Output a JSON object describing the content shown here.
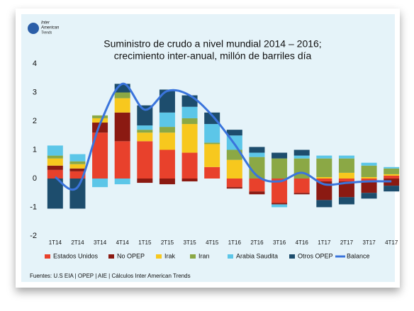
{
  "logo": {
    "line1": "Inter",
    "line2": "American",
    "line3": "Trends"
  },
  "chart_data": {
    "type": "bar",
    "stacked": true,
    "title": "Suministro de crudo a nivel mundial 2014 – 2016;",
    "subtitle": "crecimiento inter-anual, millón de barriles día",
    "categories": [
      "1T14",
      "2T14",
      "3T14",
      "4T14",
      "1T15",
      "2T15",
      "3T15",
      "4T15",
      "1T16",
      "2T16",
      "3T16",
      "4T16",
      "1T17",
      "2T17",
      "3T17",
      "4T17"
    ],
    "series": [
      {
        "name": "Estados Unidos",
        "color": "#e8412c",
        "values": [
          0.3,
          0.25,
          1.6,
          1.3,
          1.3,
          1.0,
          0.9,
          0.4,
          -0.3,
          -0.45,
          -0.85,
          -0.5,
          -0.1,
          -0.1,
          -0.1,
          0.1
        ]
      },
      {
        "name": "No OPEP",
        "color": "#8b1a12",
        "values": [
          0.15,
          0.1,
          0.35,
          1.0,
          -0.15,
          -0.2,
          -0.1,
          0,
          -0.05,
          -0.1,
          -0.05,
          -0.05,
          -0.65,
          -0.55,
          -0.4,
          -0.25
        ]
      },
      {
        "name": "Irak",
        "color": "#f7c81e",
        "values": [
          0.25,
          0.15,
          0.15,
          0.5,
          0.3,
          0.6,
          1.0,
          0.8,
          0.65,
          0,
          0,
          0,
          0.05,
          0.2,
          0.05,
          0.05
        ]
      },
      {
        "name": "Iran",
        "color": "#8ba845",
        "values": [
          0.1,
          0.1,
          0.1,
          0.2,
          0.1,
          0.2,
          0.2,
          0.05,
          0.35,
          0.75,
          0.7,
          0.7,
          0.65,
          0.5,
          0.4,
          0.2
        ]
      },
      {
        "name": "Arabia Saudita",
        "color": "#5cc6e8",
        "values": [
          0.35,
          0.25,
          -0.3,
          -0.2,
          0.15,
          0.5,
          0.4,
          0.65,
          0.5,
          0.15,
          -0.1,
          0.1,
          0.1,
          0.1,
          0.1,
          0.05
        ]
      },
      {
        "name": "Otros OPEP",
        "color": "#1d4d6d",
        "values": [
          -1.05,
          -1.05,
          0,
          0.3,
          0.7,
          0.8,
          0.4,
          0.4,
          0.2,
          0.2,
          0.2,
          0.2,
          -0.25,
          -0.25,
          -0.2,
          -0.2
        ]
      },
      {
        "name": "Balance",
        "color": "#3a74dc",
        "type": "line",
        "values": [
          0.05,
          -0.3,
          1.9,
          3.3,
          2.4,
          3.05,
          2.9,
          2.2,
          1.2,
          0.1,
          -0.1,
          0.2,
          -0.2,
          -0.15,
          -0.1,
          -0.1
        ]
      }
    ],
    "ylim": [
      -2,
      4
    ],
    "yticks": [
      4,
      3,
      2,
      1,
      0,
      -1,
      -2
    ],
    "source": "Fuentes: U.S EIA | OPEP | AIE | Cálculos Inter American Trends"
  }
}
